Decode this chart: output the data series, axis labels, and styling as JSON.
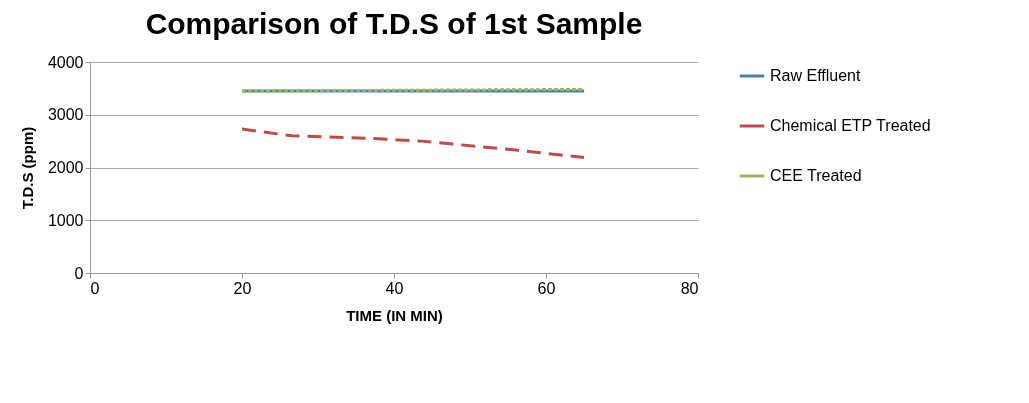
{
  "chart_data": {
    "type": "line",
    "title": "Comparison of T.D.S of 1st Sample",
    "xlabel": "TIME (IN MIN)",
    "ylabel": "T.D.S (ppm)",
    "xlim": [
      0,
      80
    ],
    "xticks": [
      0,
      20,
      40,
      60,
      80
    ],
    "ylim": [
      0,
      4000
    ],
    "yticks": [
      0,
      1000,
      2000,
      3000,
      4000
    ],
    "grid": "y",
    "legend": "right",
    "marker": "none",
    "series": [
      {
        "name": "Raw Effluent",
        "color": "#4a7ebb",
        "line_style": "solid",
        "x": [
          20,
          65
        ],
        "values": [
          3450,
          3450
        ]
      },
      {
        "name": "Chemical  ETP Treated",
        "color": "#be4b48",
        "line_style": "dashed",
        "x": [
          20,
          26.6,
          37,
          43.7,
          56,
          65
        ],
        "values": [
          2730,
          2600,
          2550,
          2500,
          2330,
          2190
        ]
      },
      {
        "name": "CEE Treated",
        "color": "#98b954",
        "line_style": "dotted",
        "x": [
          20,
          65
        ],
        "values": [
          3450,
          3480
        ]
      }
    ]
  }
}
